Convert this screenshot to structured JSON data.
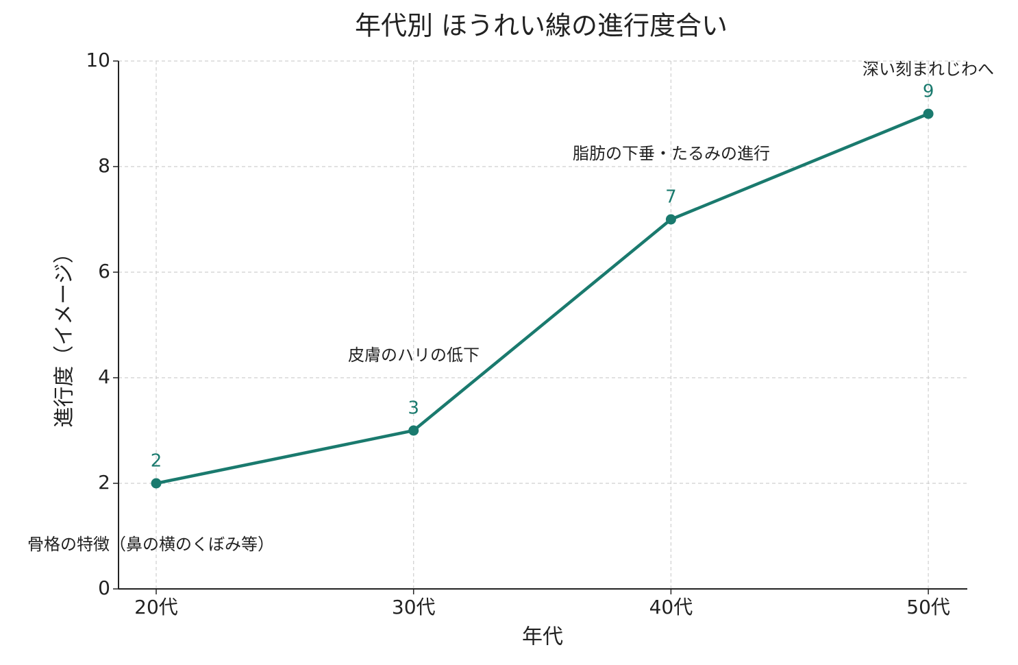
{
  "chart_data": {
    "type": "line",
    "title": "年代別 ほうれい線の進行度合い",
    "x_label": "年代",
    "y_label": "進行度（イメージ）",
    "categories": [
      "20代",
      "30代",
      "40代",
      "50代"
    ],
    "series": [
      {
        "name": "進行度",
        "color": "#1a7a6e",
        "values": [
          2,
          3,
          7,
          9
        ]
      }
    ],
    "annotations": [
      "骨格の特徴（鼻の横のくぼみ等）",
      "皮膚のハリの低下",
      "脂肪の下垂・たるみの進行",
      "深い刻まれじわへ"
    ],
    "ylim": [
      0,
      10
    ],
    "yticks": [
      0,
      2,
      4,
      6,
      8,
      10
    ],
    "grid": true
  }
}
